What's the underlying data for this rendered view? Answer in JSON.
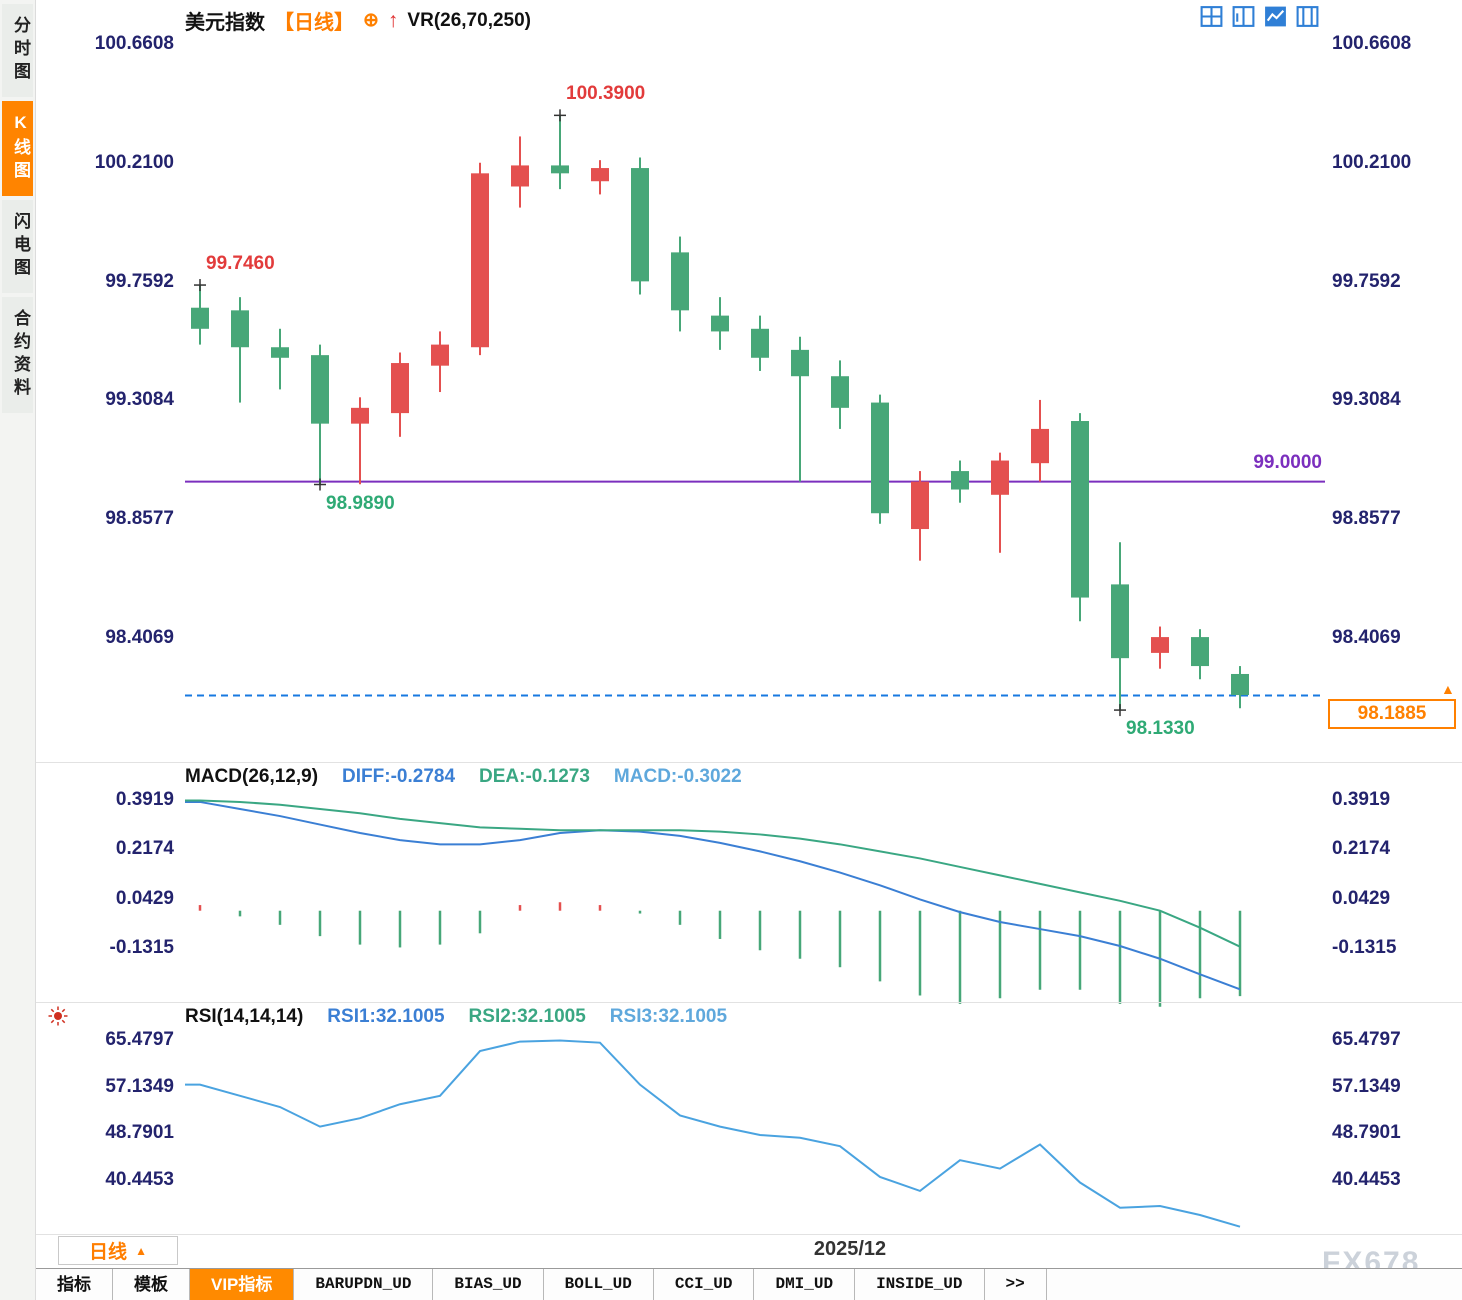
{
  "colors": {
    "up": "#e4504f",
    "down": "#47a778",
    "axis_text": "#23236d",
    "accent_orange": "#ff8000",
    "purple": "#7b2fbe",
    "dashed_blue": "#1779e0",
    "diff_blue": "#3b7fd4",
    "dea_green": "#3aa783",
    "macd_cyan": "#5fa8dc",
    "rsi_line": "#4aa3e0",
    "ann_red": "#e23b3b",
    "ann_green": "#2faa75",
    "icon_blue": "#2f7fd6"
  },
  "sidebar": {
    "items": [
      {
        "name": "tab-time-chart",
        "label": "分时图",
        "active": false
      },
      {
        "name": "tab-kline-chart",
        "label": "K线图",
        "active": true
      },
      {
        "name": "tab-flash-chart",
        "label": "闪电图",
        "active": false
      },
      {
        "name": "tab-contract-info",
        "label": "合约资料",
        "active": false
      }
    ]
  },
  "header": {
    "title": "美元指数",
    "period": "【日线】",
    "plus_icon": "⊕",
    "arrow_icon": "↑",
    "indicator": "VR(26,70,250)"
  },
  "price_axis": {
    "up_arrow": "▲"
  },
  "footer": {
    "period_button": "日线",
    "period_arrow": "▲",
    "date_label": "2025/12",
    "watermark": "FX678"
  },
  "tabbar": {
    "tabs": [
      {
        "name": "tab-indicators",
        "label": "指标",
        "active": false
      },
      {
        "name": "tab-templates",
        "label": "模板",
        "active": false
      },
      {
        "name": "tab-vip-indicators",
        "label": "VIP指标",
        "active": true
      },
      {
        "name": "tab-barupdn",
        "label": "BARUPDN_UD",
        "active": false
      },
      {
        "name": "tab-bias",
        "label": "BIAS_UD",
        "active": false
      },
      {
        "name": "tab-boll",
        "label": "BOLL_UD",
        "active": false
      },
      {
        "name": "tab-cci",
        "label": "CCI_UD",
        "active": false
      },
      {
        "name": "tab-dmi",
        "label": "DMI_UD",
        "active": false
      },
      {
        "name": "tab-inside",
        "label": "INSIDE_UD",
        "active": false
      },
      {
        "name": "tab-more",
        "label": ">>",
        "active": false
      }
    ]
  },
  "chart_data": [
    {
      "type": "candlestick",
      "title": "美元指数 日线",
      "ylim": [
        98.05,
        100.72
      ],
      "y_ticks": [
        100.6608,
        100.21,
        99.7592,
        99.3084,
        98.8577,
        98.4069
      ],
      "candles": [
        [
          99.66,
          99.746,
          99.52,
          99.58
        ],
        [
          99.65,
          99.7,
          99.3,
          99.51
        ],
        [
          99.51,
          99.58,
          99.35,
          99.47
        ],
        [
          99.48,
          99.52,
          98.989,
          99.22
        ],
        [
          99.22,
          99.32,
          98.99,
          99.28
        ],
        [
          99.26,
          99.49,
          99.17,
          99.45
        ],
        [
          99.44,
          99.57,
          99.34,
          99.52
        ],
        [
          99.51,
          100.21,
          99.48,
          100.17
        ],
        [
          100.12,
          100.31,
          100.04,
          100.2
        ],
        [
          100.2,
          100.39,
          100.11,
          100.17
        ],
        [
          100.14,
          100.22,
          100.09,
          100.19
        ],
        [
          100.19,
          100.23,
          99.71,
          99.76
        ],
        [
          99.87,
          99.93,
          99.57,
          99.65
        ],
        [
          99.63,
          99.7,
          99.5,
          99.57
        ],
        [
          99.58,
          99.63,
          99.42,
          99.47
        ],
        [
          99.5,
          99.55,
          99.0,
          99.4
        ],
        [
          99.4,
          99.46,
          99.2,
          99.28
        ],
        [
          99.3,
          99.33,
          98.84,
          98.88
        ],
        [
          98.82,
          99.04,
          98.7,
          99.0
        ],
        [
          99.04,
          99.08,
          98.92,
          98.97
        ],
        [
          98.95,
          99.11,
          98.73,
          99.08
        ],
        [
          99.07,
          99.31,
          99.0,
          99.2
        ],
        [
          99.23,
          99.26,
          98.47,
          98.56
        ],
        [
          98.61,
          98.77,
          98.133,
          98.33
        ],
        [
          98.35,
          98.45,
          98.29,
          98.41
        ],
        [
          98.41,
          98.44,
          98.25,
          98.3
        ],
        [
          98.27,
          98.3,
          98.14,
          98.19
        ]
      ],
      "support_line": {
        "value": 99.0,
        "label": "99.0000"
      },
      "current_price": {
        "value": 98.1885,
        "label": "98.1885"
      },
      "annotations": [
        {
          "candle": 0,
          "type": "high",
          "label": "99.7460",
          "color": "red"
        },
        {
          "candle": 9,
          "type": "high",
          "label": "100.3900",
          "color": "red"
        },
        {
          "candle": 3,
          "type": "low",
          "label": "98.9890",
          "color": "green"
        },
        {
          "candle": 23,
          "type": "low",
          "label": "98.1330",
          "color": "green"
        }
      ]
    },
    {
      "type": "macd",
      "title": "MACD(26,12,9)",
      "value_labels": [
        {
          "text": "DIFF:-0.2784",
          "color_key": "diff_blue"
        },
        {
          "text": "DEA:-0.1273",
          "color_key": "dea_green"
        },
        {
          "text": "MACD:-0.3022",
          "color_key": "macd_cyan"
        }
      ],
      "y_ticks": [
        0.3919,
        0.2174,
        0.0429,
        -0.1315
      ],
      "diff": [
        0.385,
        0.36,
        0.335,
        0.305,
        0.275,
        0.25,
        0.235,
        0.235,
        0.25,
        0.275,
        0.285,
        0.28,
        0.265,
        0.24,
        0.21,
        0.175,
        0.135,
        0.09,
        0.04,
        -0.005,
        -0.04,
        -0.065,
        -0.09,
        -0.125,
        -0.17,
        -0.225,
        -0.2784
      ],
      "dea": [
        0.39,
        0.385,
        0.375,
        0.36,
        0.345,
        0.325,
        0.31,
        0.295,
        0.29,
        0.285,
        0.285,
        0.285,
        0.285,
        0.28,
        0.27,
        0.255,
        0.235,
        0.21,
        0.185,
        0.155,
        0.125,
        0.095,
        0.065,
        0.035,
        0.0,
        -0.06,
        -0.1273
      ],
      "hist": [
        0.02,
        -0.02,
        -0.05,
        -0.09,
        -0.12,
        -0.13,
        -0.12,
        -0.08,
        0.02,
        0.03,
        0.02,
        -0.01,
        -0.05,
        -0.1,
        -0.14,
        -0.17,
        -0.2,
        -0.25,
        -0.3,
        -0.33,
        -0.31,
        -0.28,
        -0.28,
        -0.33,
        -0.34,
        -0.31,
        -0.3022
      ]
    },
    {
      "type": "line",
      "title": "RSI(14,14,14)",
      "value_labels": [
        {
          "text": "RSI1:32.1005",
          "color_key": "diff_blue"
        },
        {
          "text": "RSI2:32.1005",
          "color_key": "dea_green"
        },
        {
          "text": "RSI3:32.1005",
          "color_key": "macd_cyan"
        }
      ],
      "y_ticks": [
        65.4797,
        57.1349,
        48.7901,
        40.4453
      ],
      "rsi": [
        57.5,
        55.5,
        53.5,
        50.0,
        51.5,
        54.0,
        55.5,
        63.5,
        65.2,
        65.4,
        65.0,
        57.5,
        52.0,
        50.0,
        48.5,
        48.0,
        46.5,
        41.0,
        38.5,
        44.0,
        42.5,
        46.8,
        40.0,
        35.5,
        35.8,
        34.2,
        32.1
      ]
    }
  ]
}
